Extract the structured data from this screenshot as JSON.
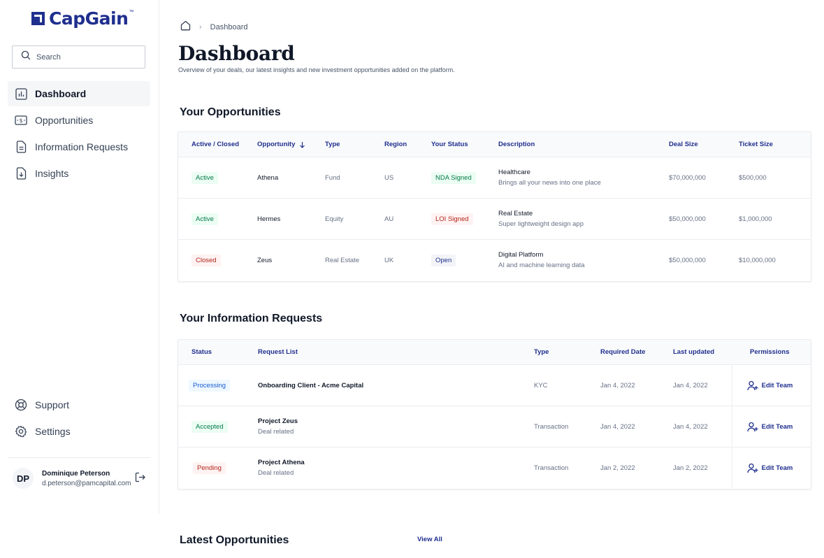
{
  "brand": {
    "name": "CapGain",
    "tm": "™",
    "color": "#1f2f8e"
  },
  "search": {
    "placeholder": "Search"
  },
  "nav": {
    "items": [
      {
        "label": "Dashboard",
        "icon": "bar-chart-icon",
        "active": true
      },
      {
        "label": "Opportunities",
        "icon": "money-icon"
      },
      {
        "label": "Information Requests",
        "icon": "document-icon"
      },
      {
        "label": "Insights",
        "icon": "download-doc-icon"
      }
    ],
    "bottom": [
      {
        "label": "Support",
        "icon": "life-buoy-icon"
      },
      {
        "label": "Settings",
        "icon": "gear-icon"
      }
    ]
  },
  "user": {
    "initials": "DP",
    "name": "Dominique Peterson",
    "email": "d.peterson@pamcapital.com"
  },
  "breadcrumb": {
    "current": "Dashboard"
  },
  "header": {
    "title": "Dashboard",
    "subtitle": "Overview of your deals, our latest insights and new investment opportunities added on the platform."
  },
  "opportunities": {
    "title": "Your Opportunities",
    "columns": [
      "Active / Closed",
      "Opportunity",
      "Type",
      "Region",
      "Your Status",
      "Description",
      "Deal Size",
      "Ticket Size"
    ],
    "rows": [
      {
        "state": "Active",
        "name": "Athena",
        "type": "Fund",
        "region": "US",
        "status": "NDA Signed",
        "desc_title": "Healthcare",
        "desc_sub": "Brings all your news into one place",
        "deal": "$70,000,000",
        "ticket": "$500,000"
      },
      {
        "state": "Active",
        "name": "Hermes",
        "type": "Equity",
        "region": "AU",
        "status": "LOI Signed",
        "desc_title": "Real Estate",
        "desc_sub": "Super lightweight design app",
        "deal": "$50,000,000",
        "ticket": "$1,000,000"
      },
      {
        "state": "Closed",
        "name": "Zeus",
        "type": "Real Estate",
        "region": "UK",
        "status": "Open",
        "desc_title": "Digital Platform",
        "desc_sub": "AI and machine learning data",
        "deal": "$50,000,000",
        "ticket": "$10,000,000"
      }
    ]
  },
  "requests": {
    "title": "Your Information Requests",
    "columns": [
      "Status",
      "Request List",
      "Type",
      "Required Date",
      "Last updated",
      "Permissions"
    ],
    "rows": [
      {
        "status": "Processing",
        "title": "Onboarding Client - Acme Capital",
        "sub": "",
        "type": "KYC",
        "required": "Jan 4, 2022",
        "updated": "Jan 4, 2022",
        "action": "Edit Team"
      },
      {
        "status": "Accepted",
        "title": "Project Zeus",
        "sub": "Deal related",
        "type": "Transaction",
        "required": "Jan 4, 2022",
        "updated": "Jan 4, 2022",
        "action": "Edit Team"
      },
      {
        "status": "Pending",
        "title": "Project Athena",
        "sub": "Deal related",
        "type": "Transaction",
        "required": "Jan 2, 2022",
        "updated": "Jan 2, 2022",
        "action": "Edit Team"
      }
    ]
  },
  "latest": {
    "title": "Latest Opportunities",
    "view_all": "View All"
  }
}
